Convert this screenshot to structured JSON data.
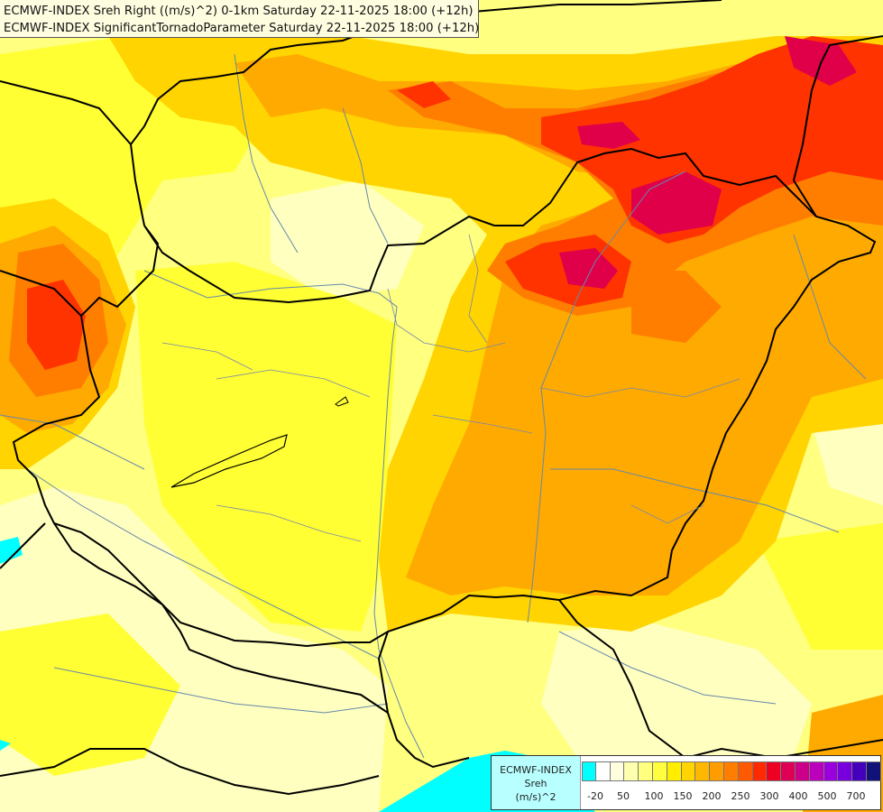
{
  "title": {
    "line1": "ECMWF-INDEX Sreh Right ((m/s)^2) 0-1km Saturday 22-11-2025 18:00 (+12h)",
    "line2": "ECMWF-INDEX SignificantTornadoParameter Saturday 22-11-2025 18:00 (+12h)"
  },
  "legend": {
    "source": "ECMWF-INDEX",
    "variable": "Sreh",
    "unit": "(m/s)^2",
    "colors": [
      "#00ffff",
      "#ffffff",
      "#ffffe0",
      "#ffffb0",
      "#ffff80",
      "#ffff40",
      "#ffee00",
      "#ffd400",
      "#ffb800",
      "#ff9c00",
      "#ff7e00",
      "#ff5a00",
      "#ff2a00",
      "#ee0022",
      "#dd0055",
      "#cc0088",
      "#bb00bb",
      "#9900dd",
      "#7700dd",
      "#4400bb",
      "#111177"
    ],
    "tick_labels": [
      "-20",
      "50",
      "100",
      "150",
      "200",
      "250",
      "300",
      "400",
      "500",
      "700"
    ]
  },
  "field_colors": {
    "pale": "#ffffc0",
    "light": "#ffff80",
    "yellow": "#ffff33",
    "gold": "#ffd400",
    "orange": "#ffaa00",
    "dark_orange": "#ff7e00",
    "red": "#ff3300",
    "crimson": "#e0004a",
    "cyan": "#00ffff",
    "border": "#000000",
    "river": "#6688aa"
  }
}
